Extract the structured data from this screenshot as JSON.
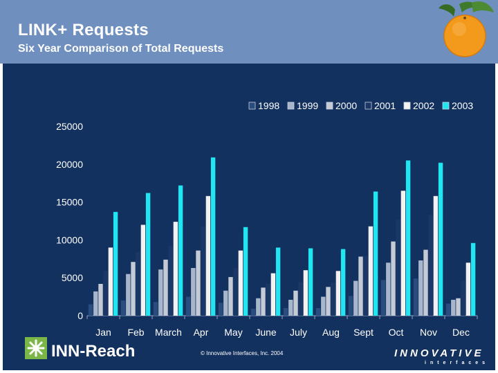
{
  "header": {
    "title": "LINK+ Requests",
    "subtitle": "Six Year Comparison of Total Requests"
  },
  "footer": {
    "logo_text": "INN-Reach",
    "copyright": "© Innovative Interfaces, Inc. 2004",
    "company_logo_line1": "INNOVATIVE",
    "company_logo_line2": "interfaces"
  },
  "chart_data": {
    "type": "bar",
    "title": "",
    "xlabel": "",
    "ylabel": "",
    "ylim": [
      0,
      25000
    ],
    "yticks": [
      0,
      5000,
      10000,
      15000,
      20000,
      25000
    ],
    "grid": false,
    "legend_position": "top-right",
    "categories": [
      "Jan",
      "Feb",
      "March",
      "Apr",
      "May",
      "June",
      "July",
      "Aug",
      "Sept",
      "Oct",
      "Nov",
      "Dec"
    ],
    "series": [
      {
        "name": "1998",
        "color": "#2a4d80",
        "values": [
          1500,
          2000,
          1800,
          2500,
          1700,
          900,
          1000,
          1000,
          2600,
          4700,
          4900,
          1600
        ]
      },
      {
        "name": "1999",
        "color": "#a8b6cc",
        "values": [
          3200,
          5500,
          6100,
          6300,
          3300,
          2300,
          2100,
          2500,
          4600,
          7000,
          7300,
          2100
        ]
      },
      {
        "name": "2000",
        "color": "#c4cbd6",
        "values": [
          4200,
          7100,
          7400,
          8600,
          5100,
          3700,
          3300,
          3800,
          7800,
          9800,
          8700,
          2300
        ]
      },
      {
        "name": "2001",
        "color": "#1b3766",
        "values": [
          5900,
          8400,
          9200,
          11800,
          6300,
          4200,
          4400,
          4400,
          7900,
          12700,
          13300,
          4600
        ]
      },
      {
        "name": "2002",
        "color": "#f2f2f2",
        "values": [
          9000,
          12000,
          12400,
          15800,
          8600,
          5600,
          6000,
          5900,
          11800,
          16500,
          15800,
          7000
        ]
      },
      {
        "name": "2003",
        "color": "#22e5f2",
        "values": [
          13700,
          16200,
          17200,
          20900,
          11700,
          9000,
          8900,
          8800,
          16400,
          20500,
          20200,
          9600
        ]
      }
    ]
  }
}
